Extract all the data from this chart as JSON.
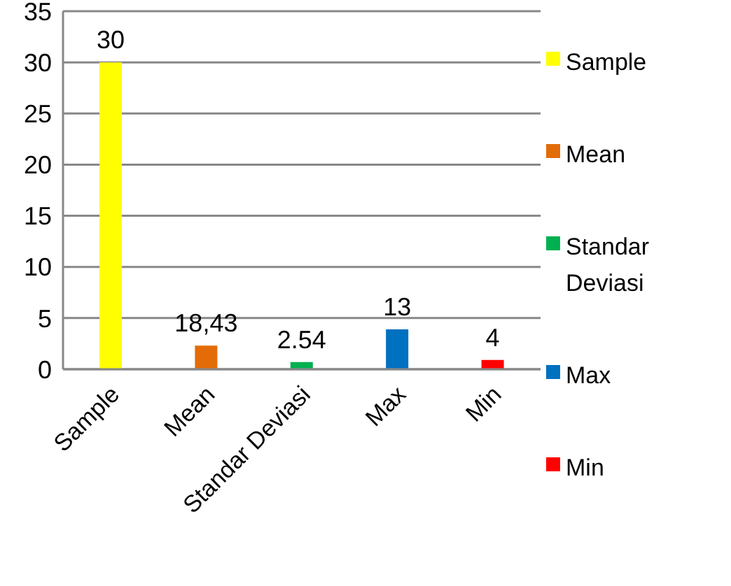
{
  "chart_data": {
    "type": "bar",
    "stacked": true,
    "categories": [
      "Sample",
      "Mean",
      "Standar Deviasi",
      "Max",
      "Min"
    ],
    "series": [
      {
        "name": "Sample",
        "color": "#ffff00",
        "values": [
          30,
          null,
          null,
          null,
          null
        ]
      },
      {
        "name": "Mean",
        "color": "#e36c09",
        "values": [
          null,
          2.3,
          null,
          null,
          null
        ]
      },
      {
        "name": "Standar Deviasi",
        "color": "#00b050",
        "values": [
          null,
          null,
          0.7,
          null,
          null
        ]
      },
      {
        "name": "Max",
        "color": "#0070c0",
        "values": [
          null,
          null,
          null,
          3.9,
          null
        ]
      },
      {
        "name": "Min",
        "color": "#ff0000",
        "values": [
          null,
          null,
          null,
          null,
          0.9
        ]
      }
    ],
    "annotations": [
      "30",
      "18,43",
      "2.54",
      "13",
      "4"
    ],
    "ylim": [
      0,
      35
    ],
    "yticks": [
      0,
      5,
      10,
      15,
      20,
      25,
      30,
      35
    ],
    "grid": "y",
    "legend": "right"
  }
}
